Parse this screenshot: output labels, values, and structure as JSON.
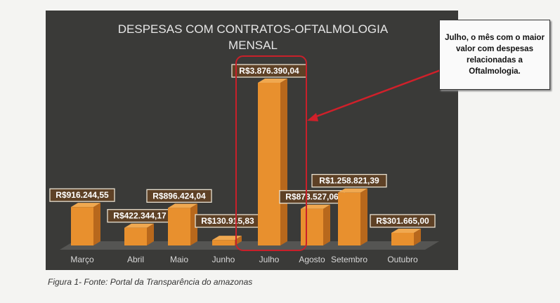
{
  "chart_data": {
    "type": "bar",
    "title": "DESPESAS COM CONTRATOS-OFTALMOLOGIA",
    "subtitle": "MENSAL",
    "categories": [
      "Março",
      "Abril",
      "Maio",
      "Junho",
      "Julho",
      "Agosto",
      "Setembro",
      "Outubro"
    ],
    "values": [
      916244.55,
      422344.17,
      896424.04,
      130915.83,
      3876390.04,
      873527.06,
      1258821.39,
      301665.0
    ],
    "value_labels": [
      "R$916.244,55",
      "R$422.344,17",
      "R$896.424,04",
      "R$130.915,83",
      "R$3.876.390,04",
      "R$873.527,06",
      "R$1.258.821,39",
      "R$301.665,00"
    ],
    "xlabel": "",
    "ylabel": "",
    "ylim": [
      0,
      4000000
    ],
    "grid": false,
    "highlight": "Julho",
    "bar_color": "#e8902e",
    "annotation": "Julho, o mês com o maior valor com despesas relacionadas a Oftalmologia."
  },
  "caption": "Figura 1- Fonte: Portal da Transparência do amazonas"
}
